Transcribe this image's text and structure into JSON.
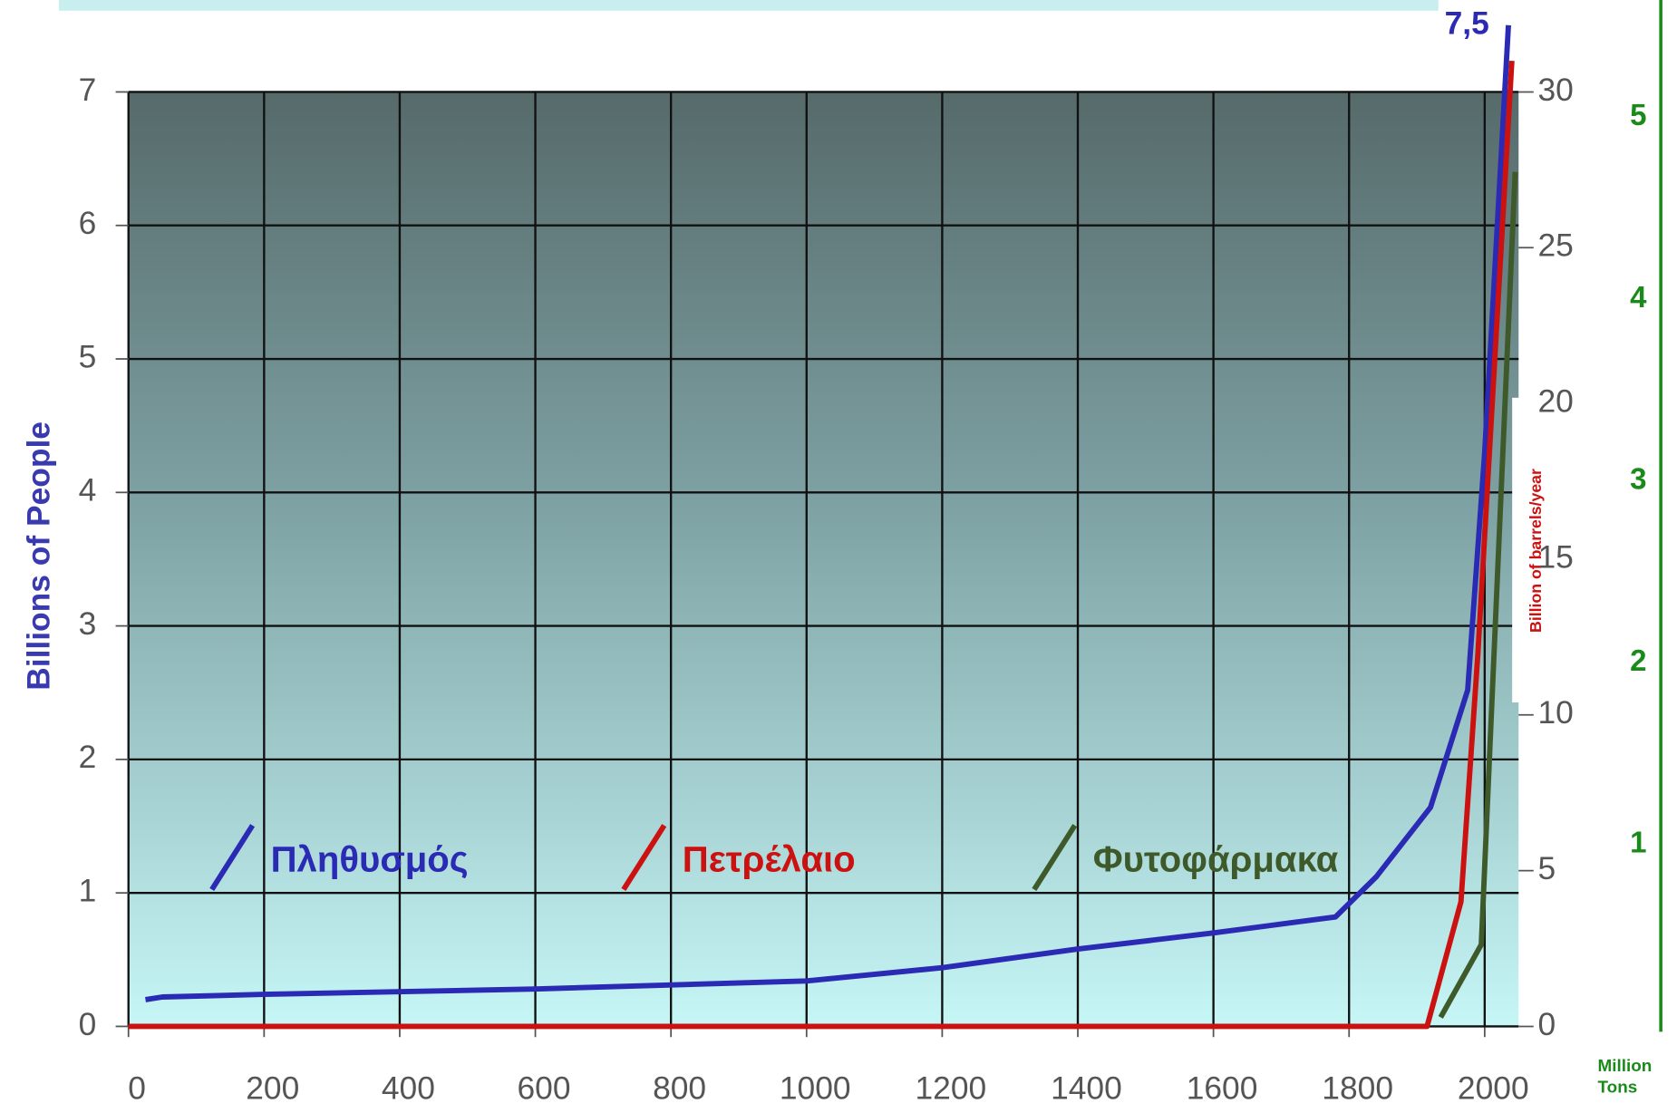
{
  "chart_data": {
    "type": "line",
    "x_label": null,
    "y_label": "Billions of People",
    "y2_label": "Billion  of barrels/year",
    "y3_label": "Million Tons",
    "xlim": [
      0,
      2050
    ],
    "xticks": [
      0,
      200,
      400,
      600,
      800,
      1000,
      1200,
      1400,
      1600,
      1800,
      2000
    ],
    "ylim": [
      0,
      7
    ],
    "yticks": [
      0,
      1,
      2,
      3,
      4,
      5,
      6,
      7
    ],
    "y2lim": [
      0,
      30
    ],
    "y2ticks": [
      0,
      5,
      10,
      15,
      20,
      25,
      30
    ],
    "y3lim": [
      0,
      5.14
    ],
    "y3ticks": [
      1,
      2,
      3,
      4,
      5
    ],
    "grid": true,
    "series": [
      {
        "name": "Πληθυσμός",
        "color": "#2a2ab4",
        "axis": "y",
        "x": [
          25,
          50,
          200,
          600,
          1000,
          1200,
          1400,
          1600,
          1780,
          1840,
          1920,
          1975,
          2000,
          2035
        ],
        "values": [
          0.2,
          0.22,
          0.24,
          0.28,
          0.34,
          0.44,
          0.58,
          0.7,
          0.82,
          1.12,
          1.64,
          2.52,
          4.3,
          7.5
        ],
        "value_labels": [
          null,
          null,
          null,
          null,
          null,
          null,
          null,
          null,
          null,
          null,
          null,
          null,
          null,
          "7,5"
        ]
      },
      {
        "name": "Πετρέλαιο",
        "color": "#cc1111",
        "axis": "y2",
        "x": [
          0,
          1915,
          1965,
          1990,
          2040
        ],
        "values": [
          0,
          0,
          4,
          12,
          31
        ]
      },
      {
        "name": "Φυτοφάρμακα",
        "color": "#3f5a2a",
        "axis": "y3",
        "x": [
          1935,
          1995,
          2045
        ],
        "values": [
          0.05,
          0.45,
          4.7
        ]
      }
    ]
  }
}
